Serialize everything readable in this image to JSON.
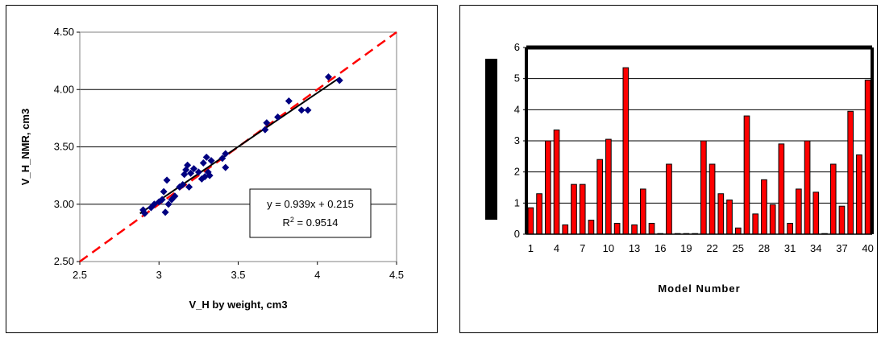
{
  "chart_data": [
    {
      "type": "scatter",
      "xlabel": "V_H by weight, cm3",
      "ylabel": "V_H_NMR, cm3",
      "xlim": [
        2.5,
        4.5
      ],
      "ylim": [
        2.5,
        4.5
      ],
      "x_ticks": [
        "2.5",
        "3",
        "3.5",
        "4",
        "4.5"
      ],
      "y_ticks": [
        "2.50",
        "3.00",
        "3.50",
        "4.00",
        "4.50"
      ],
      "grid": "horizontal",
      "marker_color": "#000080",
      "fit_line": {
        "slope": 0.939,
        "intercept": 0.215,
        "color": "#000000"
      },
      "reference_line": {
        "slope": 1,
        "intercept": 0,
        "color": "#ff0000",
        "style": "dashed"
      },
      "annotation": {
        "equation": "y = 0.939x + 0.215",
        "r2_prefix": "R",
        "r2_exponent": "2",
        "r2_value": " = 0.9514"
      },
      "points": [
        [
          2.9,
          2.95
        ],
        [
          2.91,
          2.92
        ],
        [
          2.95,
          2.97
        ],
        [
          2.97,
          3.0
        ],
        [
          3.0,
          3.02
        ],
        [
          3.02,
          3.04
        ],
        [
          3.03,
          3.11
        ],
        [
          3.04,
          2.93
        ],
        [
          3.05,
          3.21
        ],
        [
          3.06,
          3.0
        ],
        [
          3.08,
          3.04
        ],
        [
          3.1,
          3.07
        ],
        [
          3.13,
          3.15
        ],
        [
          3.15,
          3.17
        ],
        [
          3.16,
          3.26
        ],
        [
          3.17,
          3.3
        ],
        [
          3.18,
          3.34
        ],
        [
          3.19,
          3.15
        ],
        [
          3.2,
          3.27
        ],
        [
          3.22,
          3.31
        ],
        [
          3.25,
          3.28
        ],
        [
          3.27,
          3.22
        ],
        [
          3.28,
          3.36
        ],
        [
          3.29,
          3.24
        ],
        [
          3.3,
          3.41
        ],
        [
          3.31,
          3.28
        ],
        [
          3.32,
          3.25
        ],
        [
          3.33,
          3.38
        ],
        [
          3.4,
          3.4
        ],
        [
          3.42,
          3.32
        ],
        [
          3.42,
          3.44
        ],
        [
          3.67,
          3.65
        ],
        [
          3.68,
          3.71
        ],
        [
          3.75,
          3.76
        ],
        [
          3.82,
          3.9
        ],
        [
          3.9,
          3.82
        ],
        [
          3.94,
          3.82
        ],
        [
          4.07,
          4.11
        ],
        [
          4.14,
          4.08
        ]
      ]
    },
    {
      "type": "bar",
      "xlabel": "Model Number",
      "ylabel": "",
      "ylim": [
        0,
        6
      ],
      "y_ticks": [
        "0",
        "1",
        "2",
        "3",
        "4",
        "5",
        "6"
      ],
      "x_tick_labels": [
        "1",
        "4",
        "7",
        "10",
        "13",
        "16",
        "19",
        "22",
        "25",
        "28",
        "31",
        "34",
        "37",
        "40"
      ],
      "grid": "horizontal",
      "bar_color": "#ff0000",
      "categories": [
        "1",
        "2",
        "3",
        "4",
        "5",
        "6",
        "7",
        "8",
        "9",
        "10",
        "11",
        "12",
        "13",
        "14",
        "15",
        "16",
        "17",
        "18",
        "19",
        "20",
        "21",
        "22",
        "23",
        "24",
        "25",
        "26",
        "27",
        "28",
        "29",
        "30",
        "31",
        "32",
        "33",
        "34",
        "35",
        "36",
        "37",
        "38",
        "39",
        "40"
      ],
      "values": [
        0.85,
        1.3,
        3.0,
        3.35,
        0.3,
        1.6,
        1.6,
        0.45,
        2.4,
        3.05,
        0.35,
        5.35,
        0.3,
        1.45,
        0.35,
        0.02,
        2.25,
        0.02,
        0.02,
        0.02,
        3.0,
        2.25,
        1.3,
        1.1,
        0.2,
        3.8,
        0.65,
        1.75,
        0.95,
        2.9,
        0.35,
        1.45,
        3.0,
        1.35,
        0.02,
        2.25,
        0.9,
        3.95,
        2.55,
        4.95
      ]
    }
  ]
}
